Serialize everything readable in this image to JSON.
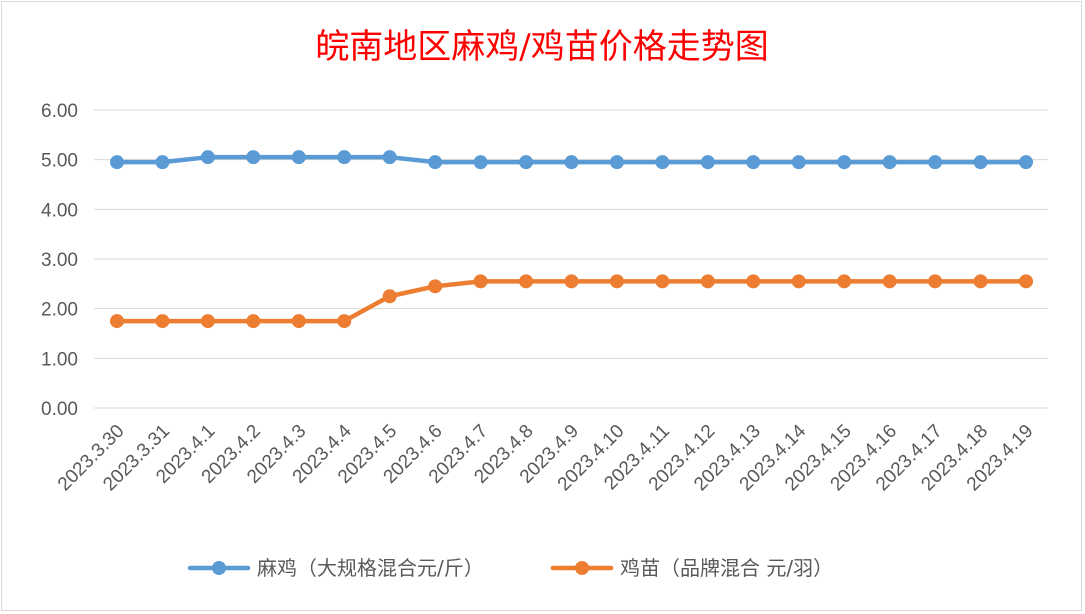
{
  "chart_data": {
    "type": "line",
    "title": "皖南地区麻鸡/鸡苗价格走势图",
    "categories": [
      "2023.3.30",
      "2023.3.31",
      "2023.4.1",
      "2023.4.2",
      "2023.4.3",
      "2023.4.4",
      "2023.4.5",
      "2023.4.6",
      "2023.4.7",
      "2023.4.8",
      "2023.4.9",
      "2023.4.10",
      "2023.4.11",
      "2023.4.12",
      "2023.4.13",
      "2023.4.14",
      "2023.4.15",
      "2023.4.16",
      "2023.4.17",
      "2023.4.18",
      "2023.4.19"
    ],
    "series": [
      {
        "name": "麻鸡（大规格混合元/斤）",
        "color": "#5b9bd5",
        "values": [
          4.95,
          4.95,
          5.05,
          5.05,
          5.05,
          5.05,
          5.05,
          4.95,
          4.95,
          4.95,
          4.95,
          4.95,
          4.95,
          4.95,
          4.95,
          4.95,
          4.95,
          4.95,
          4.95,
          4.95,
          4.95
        ]
      },
      {
        "name": "鸡苗（品牌混合 元/羽）",
        "color": "#ed7d31",
        "values": [
          1.75,
          1.75,
          1.75,
          1.75,
          1.75,
          1.75,
          2.25,
          2.45,
          2.55,
          2.55,
          2.55,
          2.55,
          2.55,
          2.55,
          2.55,
          2.55,
          2.55,
          2.55,
          2.55,
          2.55,
          2.55
        ]
      }
    ],
    "yticks": [
      "0.00",
      "1.00",
      "2.00",
      "3.00",
      "4.00",
      "5.00",
      "6.00"
    ],
    "ylim": [
      0,
      6
    ],
    "grid": true,
    "legend": "bottom"
  }
}
